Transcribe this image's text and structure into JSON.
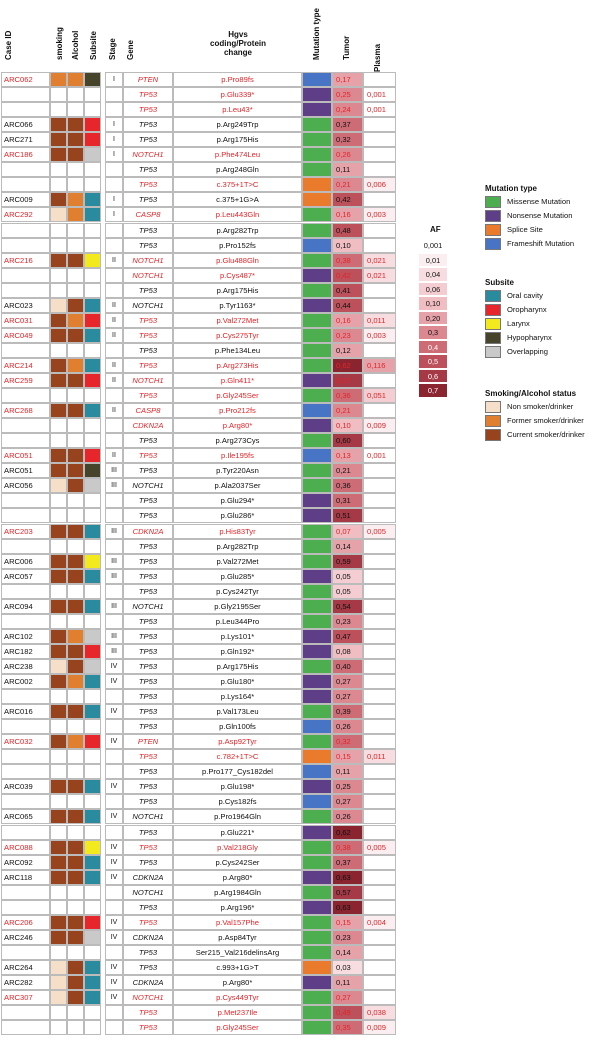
{
  "headers": {
    "case_id": "Case ID",
    "smoking": "smoking",
    "alcohol": "Alcohol",
    "subsite": "Subsite",
    "stage": "Stage",
    "gene": "Gene",
    "hgvs_line1": "Hgvs",
    "hgvs_line2": "coding/Protein",
    "hgvs_line3": "change",
    "mutation_type": "Mutation type",
    "tumor": "Tumor",
    "plasma": "Plasma"
  },
  "colors": {
    "mutation": {
      "Missense": "#4cae4f",
      "Nonsense": "#5e3f87",
      "Splice": "#ea7a2c",
      "Frameshift": "#4774c4"
    },
    "subsite": {
      "Oral": "#2a8a9e",
      "Oro": "#e6262b",
      "Lar": "#f2ea1c",
      "Hypo": "#46452c",
      "Over": "#c9c9c9"
    },
    "status": {
      "Non": "#f6dfc9",
      "Former": "#e07f2f",
      "Current": "#97431e"
    },
    "af_scale": [
      "#ffffff",
      "#fbeef0",
      "#f7dde0",
      "#f3cdd1",
      "#efbdc2",
      "#e6a2a9",
      "#dc8891",
      "#ce6c76",
      "#bc505b",
      "#a53945",
      "#8a2530",
      "#6e1520"
    ],
    "red_text": "#e0262a"
  },
  "legend": {
    "mutation_title": "Mutation type",
    "mutation_items": [
      {
        "label": "Missense Mutation",
        "color": "#4cae4f"
      },
      {
        "label": "Nonsense Mutation",
        "color": "#5e3f87"
      },
      {
        "label": "Splice Site",
        "color": "#ea7a2c"
      },
      {
        "label": "Frameshift Mutation",
        "color": "#4774c4"
      }
    ],
    "subsite_title": "Subsite",
    "subsite_items": [
      {
        "label": "Oral cavity",
        "color": "#2a8a9e"
      },
      {
        "label": "Oropharynx",
        "color": "#e6262b"
      },
      {
        "label": "Larynx",
        "color": "#f2ea1c"
      },
      {
        "label": "Hypopharynx",
        "color": "#46452c"
      },
      {
        "label": "Overlapping",
        "color": "#c9c9c9"
      }
    ],
    "status_title": "Smoking/Alcohol status",
    "status_items": [
      {
        "label": "Non smoker/drinker",
        "color": "#f6dfc9"
      },
      {
        "label": "Former smoker/drinker",
        "color": "#e07f2f"
      },
      {
        "label": "Current smoker/drinker",
        "color": "#97431e"
      }
    ],
    "af_title": "AF",
    "af_values": [
      "0,001",
      "0,01",
      "0,04",
      "0,06",
      "0,10",
      "0,20",
      "0,3",
      "0,4",
      "0,5",
      "0,6",
      "0,7"
    ]
  },
  "rows": [
    {
      "case": "ARC062",
      "red": true,
      "smoking": "Former",
      "alcohol": "Former",
      "subsite": "Hypo",
      "stage": "I",
      "gene": "PTEN",
      "change": "p.Pro89fs",
      "mut": "Frameshift",
      "tumor": "0,17",
      "plasma": ""
    },
    {
      "case": "",
      "red": true,
      "smoking": "",
      "alcohol": "",
      "subsite": "",
      "stage": "",
      "gene": "TP53",
      "change": "p.Glu339*",
      "mut": "Nonsense",
      "tumor": "0,25",
      "plasma": "0,001"
    },
    {
      "case": "",
      "red": true,
      "smoking": "",
      "alcohol": "",
      "subsite": "",
      "stage": "",
      "gene": "TP53",
      "change": "p.Leu43*",
      "mut": "Nonsense",
      "tumor": "0,24",
      "plasma": "0,001"
    },
    {
      "case": "ARC066",
      "red": false,
      "smoking": "Current",
      "alcohol": "Current",
      "subsite": "Oro",
      "stage": "I",
      "gene": "TP53",
      "change": "p.Arg249Trp",
      "mut": "Missense",
      "tumor": "0,37",
      "plasma": ""
    },
    {
      "case": "ARC271",
      "red": false,
      "smoking": "Current",
      "alcohol": "Current",
      "subsite": "Oro",
      "stage": "I",
      "gene": "TP53",
      "change": "p.Arg175His",
      "mut": "Missense",
      "tumor": "0,32",
      "plasma": ""
    },
    {
      "case": "ARC186",
      "red": true,
      "smoking": "Current",
      "alcohol": "Current",
      "subsite": "Over",
      "stage": "I",
      "gene": "NOTCH1",
      "change": "p.Phe474Leu",
      "mut": "Missense",
      "tumor": "0,26",
      "plasma": ""
    },
    {
      "case": "",
      "red": false,
      "smoking": "",
      "alcohol": "",
      "subsite": "",
      "stage": "",
      "gene": "TP53",
      "change": "p.Arg248Gln",
      "mut": "Missense",
      "tumor": "0,11",
      "plasma": ""
    },
    {
      "case": "",
      "red": true,
      "smoking": "",
      "alcohol": "",
      "subsite": "",
      "stage": "",
      "gene": "TP53",
      "change": "c.375+1T>C",
      "mut": "Splice",
      "tumor": "0,21",
      "plasma": "0,006"
    },
    {
      "case": "ARC009",
      "red": false,
      "smoking": "Current",
      "alcohol": "Former",
      "subsite": "Oral",
      "stage": "I",
      "gene": "TP53",
      "change": "c.375+1G>A",
      "mut": "Splice",
      "tumor": "0,42",
      "plasma": ""
    },
    {
      "case": "ARC292",
      "red": true,
      "smoking": "Non",
      "alcohol": "Former",
      "subsite": "Oral",
      "stage": "I",
      "gene": "CASP8",
      "change": "p.Leu443Gln",
      "mut": "Missense",
      "tumor": "0,16",
      "plasma": "0,003"
    },
    {
      "case": "",
      "red": false,
      "smoking": "",
      "alcohol": "",
      "subsite": "",
      "stage": "",
      "gene": "TP53",
      "change": "p.Arg282Trp",
      "mut": "Missense",
      "tumor": "0,48",
      "plasma": ""
    },
    {
      "case": "",
      "red": false,
      "smoking": "",
      "alcohol": "",
      "subsite": "",
      "stage": "",
      "gene": "TP53",
      "change": "p.Pro152fs",
      "mut": "Frameshift",
      "tumor": "0,10",
      "plasma": ""
    },
    {
      "case": "ARC216",
      "red": true,
      "smoking": "Current",
      "alcohol": "Current",
      "subsite": "Lar",
      "stage": "II",
      "gene": "NOTCH1",
      "change": "p.Glu488Gln",
      "mut": "Missense",
      "tumor": "0,38",
      "plasma": "0,021"
    },
    {
      "case": "",
      "red": true,
      "smoking": "",
      "alcohol": "",
      "subsite": "",
      "stage": "",
      "gene": "NOTCH1",
      "change": "p.Cys487*",
      "mut": "Nonsense",
      "tumor": "0,42",
      "plasma": "0,021"
    },
    {
      "case": "",
      "red": false,
      "smoking": "",
      "alcohol": "",
      "subsite": "",
      "stage": "",
      "gene": "TP53",
      "change": "p.Arg175His",
      "mut": "Missense",
      "tumor": "0,41",
      "plasma": ""
    },
    {
      "case": "ARC023",
      "red": false,
      "smoking": "Non",
      "alcohol": "Current",
      "subsite": "Oral",
      "stage": "II",
      "gene": "NOTCH1",
      "change": "p.Tyr1163*",
      "mut": "Nonsense",
      "tumor": "0,44",
      "plasma": ""
    },
    {
      "case": "ARC031",
      "red": true,
      "smoking": "Current",
      "alcohol": "Former",
      "subsite": "Oro",
      "stage": "II",
      "gene": "TP53",
      "change": "p.Val272Met",
      "mut": "Missense",
      "tumor": "0,16",
      "plasma": "0,011"
    },
    {
      "case": "ARC049",
      "red": true,
      "smoking": "Current",
      "alcohol": "Current",
      "subsite": "Oral",
      "stage": "II",
      "gene": "TP53",
      "change": "p.Cys275Tyr",
      "mut": "Missense",
      "tumor": "0,23",
      "plasma": "0,003"
    },
    {
      "case": "",
      "red": false,
      "smoking": "",
      "alcohol": "",
      "subsite": "",
      "stage": "",
      "gene": "TP53",
      "change": "p.Phe134Leu",
      "mut": "Missense",
      "tumor": "0,12",
      "plasma": ""
    },
    {
      "case": "ARC214",
      "red": true,
      "smoking": "Current",
      "alcohol": "Former",
      "subsite": "Oral",
      "stage": "II",
      "gene": "TP53",
      "change": "p.Arg273His",
      "mut": "Missense",
      "tumor": "0,62",
      "plasma": "0,116"
    },
    {
      "case": "ARC259",
      "red": true,
      "smoking": "Current",
      "alcohol": "Current",
      "subsite": "Oro",
      "stage": "II",
      "gene": "NOTCH1",
      "change": "p.Gln411*",
      "mut": "Nonsense",
      "tumor": "0,57",
      "plasma": ""
    },
    {
      "case": "",
      "red": true,
      "smoking": "",
      "alcohol": "",
      "subsite": "",
      "stage": "",
      "gene": "TP53",
      "change": "p.Gly245Ser",
      "mut": "Missense",
      "tumor": "0,36",
      "plasma": "0,051"
    },
    {
      "case": "ARC268",
      "red": true,
      "smoking": "Current",
      "alcohol": "Current",
      "subsite": "Oral",
      "stage": "II",
      "gene": "CASP8",
      "change": "p.Pro212fs",
      "mut": "Frameshift",
      "tumor": "0,21",
      "plasma": ""
    },
    {
      "case": "",
      "red": true,
      "smoking": "",
      "alcohol": "",
      "subsite": "",
      "stage": "",
      "gene": "CDKN2A",
      "change": "p.Arg80*",
      "mut": "Nonsense",
      "tumor": "0,10",
      "plasma": "0,009"
    },
    {
      "case": "",
      "red": false,
      "smoking": "",
      "alcohol": "",
      "subsite": "",
      "stage": "",
      "gene": "TP53",
      "change": "p.Arg273Cys",
      "mut": "Missense",
      "tumor": "0,60",
      "plasma": ""
    },
    {
      "case": "ARC051",
      "red": true,
      "smoking": "Current",
      "alcohol": "Current",
      "subsite": "Oro",
      "stage": "II",
      "gene": "TP53",
      "change": "p.Ile195fs",
      "mut": "Frameshift",
      "tumor": "0,13",
      "plasma": "0,001"
    },
    {
      "case": "ARC051",
      "red": false,
      "smoking": "Current",
      "alcohol": "Current",
      "subsite": "Hypo",
      "stage": "III",
      "gene": "TP53",
      "change": "p.Tyr220Asn",
      "mut": "Missense",
      "tumor": "0,21",
      "plasma": ""
    },
    {
      "case": "ARC056",
      "red": false,
      "smoking": "Non",
      "alcohol": "Current",
      "subsite": "Over",
      "stage": "III",
      "gene": "NOTCH1",
      "change": "p.Ala2037Ser",
      "mut": "Missense",
      "tumor": "0,36",
      "plasma": ""
    },
    {
      "case": "",
      "red": false,
      "smoking": "",
      "alcohol": "",
      "subsite": "",
      "stage": "",
      "gene": "TP53",
      "change": "p.Glu294*",
      "mut": "Nonsense",
      "tumor": "0,31",
      "plasma": ""
    },
    {
      "case": "",
      "red": false,
      "smoking": "",
      "alcohol": "",
      "subsite": "",
      "stage": "",
      "gene": "TP53",
      "change": "p.Glu286*",
      "mut": "Nonsense",
      "tumor": "0,51",
      "plasma": ""
    },
    {
      "case": "ARC203",
      "red": true,
      "smoking": "Current",
      "alcohol": "Current",
      "subsite": "Oral",
      "stage": "III",
      "gene": "CDKN2A",
      "change": "p.His83Tyr",
      "mut": "Missense",
      "tumor": "0,07",
      "plasma": "0,005"
    },
    {
      "case": "",
      "red": false,
      "smoking": "",
      "alcohol": "",
      "subsite": "",
      "stage": "",
      "gene": "TP53",
      "change": "p.Arg282Trp",
      "mut": "Missense",
      "tumor": "0,14",
      "plasma": ""
    },
    {
      "case": "ARC006",
      "red": false,
      "smoking": "Current",
      "alcohol": "Current",
      "subsite": "Lar",
      "stage": "III",
      "gene": "TP53",
      "change": "p.Val272Met",
      "mut": "Missense",
      "tumor": "0,59",
      "plasma": ""
    },
    {
      "case": "ARC057",
      "red": false,
      "smoking": "Current",
      "alcohol": "Current",
      "subsite": "Oral",
      "stage": "III",
      "gene": "TP53",
      "change": "p.Glu285*",
      "mut": "Nonsense",
      "tumor": "0,05",
      "plasma": ""
    },
    {
      "case": "",
      "red": false,
      "smoking": "",
      "alcohol": "",
      "subsite": "",
      "stage": "",
      "gene": "TP53",
      "change": "p.Cys242Tyr",
      "mut": "Missense",
      "tumor": "0,05",
      "plasma": ""
    },
    {
      "case": "ARC094",
      "red": false,
      "smoking": "Current",
      "alcohol": "Current",
      "subsite": "Oral",
      "stage": "III",
      "gene": "NOTCH1",
      "change": "p.Gly2195Ser",
      "mut": "Missense",
      "tumor": "0,54",
      "plasma": ""
    },
    {
      "case": "",
      "red": false,
      "smoking": "",
      "alcohol": "",
      "subsite": "",
      "stage": "",
      "gene": "TP53",
      "change": "p.Leu344Pro",
      "mut": "Missense",
      "tumor": "0,23",
      "plasma": ""
    },
    {
      "case": "ARC102",
      "red": false,
      "smoking": "Current",
      "alcohol": "Former",
      "subsite": "Over",
      "stage": "III",
      "gene": "TP53",
      "change": "p.Lys101*",
      "mut": "Nonsense",
      "tumor": "0,47",
      "plasma": ""
    },
    {
      "case": "ARC182",
      "red": false,
      "smoking": "Current",
      "alcohol": "Current",
      "subsite": "Oro",
      "stage": "III",
      "gene": "TP53",
      "change": "p.Gln192*",
      "mut": "Nonsense",
      "tumor": "0,08",
      "plasma": ""
    },
    {
      "case": "ARC238",
      "red": false,
      "smoking": "Non",
      "alcohol": "Current",
      "subsite": "Over",
      "stage": "IV",
      "gene": "TP53",
      "change": "p.Arg175His",
      "mut": "Missense",
      "tumor": "0,40",
      "plasma": ""
    },
    {
      "case": "ARC002",
      "red": false,
      "smoking": "Current",
      "alcohol": "Former",
      "subsite": "Oral",
      "stage": "IV",
      "gene": "TP53",
      "change": "p.Glu180*",
      "mut": "Nonsense",
      "tumor": "0,27",
      "plasma": ""
    },
    {
      "case": "",
      "red": false,
      "smoking": "",
      "alcohol": "",
      "subsite": "",
      "stage": "",
      "gene": "TP53",
      "change": "p.Lys164*",
      "mut": "Nonsense",
      "tumor": "0,27",
      "plasma": ""
    },
    {
      "case": "ARC016",
      "red": false,
      "smoking": "Current",
      "alcohol": "Current",
      "subsite": "Oral",
      "stage": "IV",
      "gene": "TP53",
      "change": "p.Val173Leu",
      "mut": "Missense",
      "tumor": "0,39",
      "plasma": ""
    },
    {
      "case": "",
      "red": false,
      "smoking": "",
      "alcohol": "",
      "subsite": "",
      "stage": "",
      "gene": "TP53",
      "change": "p.Gln100fs",
      "mut": "Frameshift",
      "tumor": "0,26",
      "plasma": ""
    },
    {
      "case": "ARC032",
      "red": true,
      "smoking": "Current",
      "alcohol": "Former",
      "subsite": "Oro",
      "stage": "IV",
      "gene": "PTEN",
      "change": "p.Asp92Tyr",
      "mut": "Missense",
      "tumor": "0,32",
      "plasma": ""
    },
    {
      "case": "",
      "red": true,
      "smoking": "",
      "alcohol": "",
      "subsite": "",
      "stage": "",
      "gene": "TP53",
      "change": "c.782+1T>C",
      "mut": "Splice",
      "tumor": "0,15",
      "plasma": "0,011"
    },
    {
      "case": "",
      "red": false,
      "smoking": "",
      "alcohol": "",
      "subsite": "",
      "stage": "",
      "gene": "TP53",
      "change": "p.Pro177_Cys182del",
      "mut": "Frameshift",
      "tumor": "0,11",
      "plasma": ""
    },
    {
      "case": "ARC039",
      "red": false,
      "smoking": "Current",
      "alcohol": "Current",
      "subsite": "Oral",
      "stage": "IV",
      "gene": "TP53",
      "change": "p.Glu198*",
      "mut": "Nonsense",
      "tumor": "0,25",
      "plasma": ""
    },
    {
      "case": "",
      "red": false,
      "smoking": "",
      "alcohol": "",
      "subsite": "",
      "stage": "",
      "gene": "TP53",
      "change": "p.Cys182fs",
      "mut": "Frameshift",
      "tumor": "0,27",
      "plasma": ""
    },
    {
      "case": "ARC065",
      "red": false,
      "smoking": "Current",
      "alcohol": "Current",
      "subsite": "Oral",
      "stage": "IV",
      "gene": "NOTCH1",
      "change": "p.Pro1964Gln",
      "mut": "Missense",
      "tumor": "0,26",
      "plasma": ""
    },
    {
      "case": "",
      "red": false,
      "smoking": "",
      "alcohol": "",
      "subsite": "",
      "stage": "",
      "gene": "TP53",
      "change": "p.Glu221*",
      "mut": "Nonsense",
      "tumor": "0,62",
      "plasma": ""
    },
    {
      "case": "ARC088",
      "red": true,
      "smoking": "Current",
      "alcohol": "Current",
      "subsite": "Lar",
      "stage": "IV",
      "gene": "TP53",
      "change": "p.Val218Gly",
      "mut": "Missense",
      "tumor": "0,38",
      "plasma": "0,005"
    },
    {
      "case": "ARC092",
      "red": false,
      "smoking": "Current",
      "alcohol": "Current",
      "subsite": "Oral",
      "stage": "IV",
      "gene": "TP53",
      "change": "p.Cys242Ser",
      "mut": "Missense",
      "tumor": "0,37",
      "plasma": ""
    },
    {
      "case": "ARC118",
      "red": false,
      "smoking": "Current",
      "alcohol": "Current",
      "subsite": "Oral",
      "stage": "IV",
      "gene": "CDKN2A",
      "change": "p.Arg80*",
      "mut": "Nonsense",
      "tumor": "0,63",
      "plasma": ""
    },
    {
      "case": "",
      "red": false,
      "smoking": "",
      "alcohol": "",
      "subsite": "",
      "stage": "",
      "gene": "NOTCH1",
      "change": "p.Arg1984Gln",
      "mut": "Missense",
      "tumor": "0,57",
      "plasma": ""
    },
    {
      "case": "",
      "red": false,
      "smoking": "",
      "alcohol": "",
      "subsite": "",
      "stage": "",
      "gene": "TP53",
      "change": "p.Arg196*",
      "mut": "Nonsense",
      "tumor": "0,63",
      "plasma": ""
    },
    {
      "case": "ARC206",
      "red": true,
      "smoking": "Current",
      "alcohol": "Current",
      "subsite": "Oro",
      "stage": "IV",
      "gene": "TP53",
      "change": "p.Val157Phe",
      "mut": "Missense",
      "tumor": "0,15",
      "plasma": "0,004"
    },
    {
      "case": "ARC246",
      "red": false,
      "smoking": "Current",
      "alcohol": "Current",
      "subsite": "Over",
      "stage": "IV",
      "gene": "CDKN2A",
      "change": "p.Asp84Tyr",
      "mut": "Missense",
      "tumor": "0,23",
      "plasma": ""
    },
    {
      "case": "",
      "red": false,
      "smoking": "",
      "alcohol": "",
      "subsite": "",
      "stage": "",
      "gene": "TP53",
      "change": "Ser215_Val216delinsArg",
      "mut": "Missense",
      "tumor": "0,14",
      "plasma": ""
    },
    {
      "case": "ARC264",
      "red": false,
      "smoking": "Non",
      "alcohol": "Current",
      "subsite": "Oral",
      "stage": "IV",
      "gene": "TP53",
      "change": "c.993+1G>T",
      "mut": "Splice",
      "tumor": "0,03",
      "plasma": ""
    },
    {
      "case": "ARC282",
      "red": false,
      "smoking": "Non",
      "alcohol": "Current",
      "subsite": "Oral",
      "stage": "IV",
      "gene": "CDKN2A",
      "change": "p.Arg80*",
      "mut": "Nonsense",
      "tumor": "0,11",
      "plasma": ""
    },
    {
      "case": "ARC307",
      "red": true,
      "smoking": "Non",
      "alcohol": "Current",
      "subsite": "Oral",
      "stage": "IV",
      "gene": "NOTCH1",
      "change": "p.Cys449Tyr",
      "mut": "Missense",
      "tumor": "0,27",
      "plasma": ""
    },
    {
      "case": "",
      "red": true,
      "smoking": "",
      "alcohol": "",
      "subsite": "",
      "stage": "",
      "gene": "TP53",
      "change": "p.Met237Ile",
      "mut": "Missense",
      "tumor": "0,49",
      "plasma": "0,038"
    },
    {
      "case": "",
      "red": true,
      "smoking": "",
      "alcohol": "",
      "subsite": "",
      "stage": "",
      "gene": "TP53",
      "change": "p.Gly245Ser",
      "mut": "Missense",
      "tumor": "0,35",
      "plasma": "0,009"
    }
  ]
}
